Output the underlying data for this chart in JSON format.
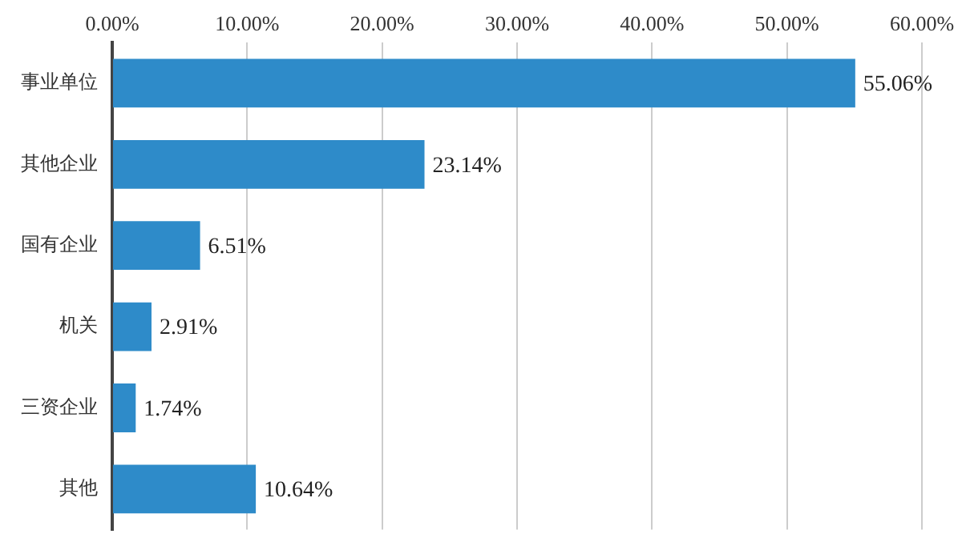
{
  "chart_data": {
    "type": "bar",
    "orientation": "horizontal",
    "categories": [
      "事业单位",
      "其他企业",
      "国有企业",
      "机关",
      "三资企业",
      "其他"
    ],
    "values": [
      55.06,
      23.14,
      6.51,
      2.91,
      1.74,
      10.64
    ],
    "value_labels": [
      "55.06%",
      "23.14%",
      "6.51%",
      "2.91%",
      "1.74%",
      "10.64%"
    ],
    "color": "#2e8bc9",
    "xlim": [
      0,
      60
    ],
    "xticks": [
      {
        "value": 0,
        "label": "0.00%"
      },
      {
        "value": 10,
        "label": "10.00%"
      },
      {
        "value": 20,
        "label": "20.00%"
      },
      {
        "value": 30,
        "label": "30.00%"
      },
      {
        "value": 40,
        "label": "40.00%"
      },
      {
        "value": 50,
        "label": "50.00%"
      },
      {
        "value": 60,
        "label": "60.00%"
      }
    ],
    "grid": "x",
    "legend": false
  }
}
